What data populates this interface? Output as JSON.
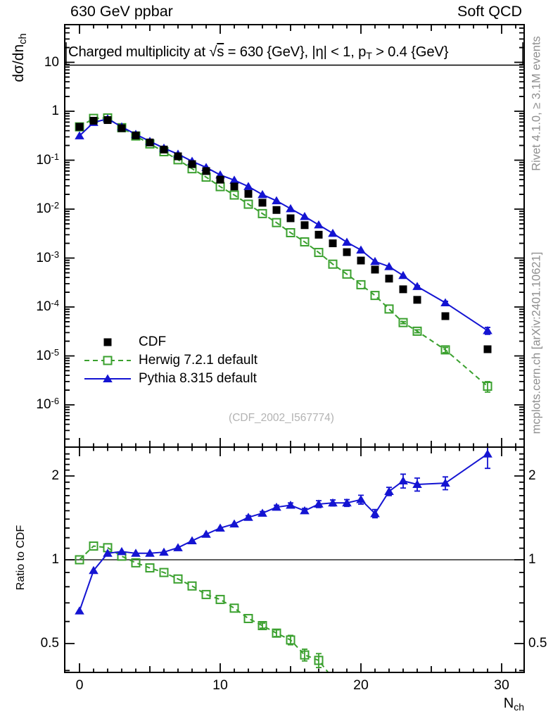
{
  "header": {
    "left_label": "630 GeV ppbar",
    "right_label": "Soft QCD"
  },
  "title": "Charged multiplicity at √s = 630 {GeV}, |η| < 1, p_{T} > 0.4 {GeV}",
  "watermark": "(CDF_2002_I567774)",
  "side_notes": {
    "top": "Rivet 4.1.0, ≥ 3.1M events",
    "bottom": "mcplots.cern.ch [arXiv:2401.10621]"
  },
  "axis_labels": {
    "y_main": "dσ/dn_{ch}",
    "y_ratio": "Ratio to CDF",
    "x": "N_{ch}"
  },
  "colors": {
    "cdf": "#000000",
    "herwig": "#3aa02e",
    "pythia": "#1414d2",
    "gray_text": "#8f8f8f",
    "watermark": "#b3b3b3"
  },
  "legend": [
    {
      "label": "CDF",
      "series": "cdf",
      "marker": "square-filled",
      "line": "none"
    },
    {
      "label": "Herwig 7.2.1 default",
      "series": "herwig",
      "marker": "square-open",
      "line": "dashed"
    },
    {
      "label": "Pythia 8.315 default",
      "series": "pythia",
      "marker": "triangle-filled",
      "line": "solid"
    }
  ],
  "chart_data": [
    {
      "name": "main",
      "type": "line",
      "y_scale": "log",
      "grid": false,
      "xlim": [
        -1.05,
        31.6
      ],
      "ylim": [
        1.4e-07,
        59
      ],
      "x": [
        0,
        1,
        2,
        3,
        4,
        5,
        6,
        7,
        8,
        9,
        10,
        11,
        12,
        13,
        14,
        15,
        16,
        17,
        18,
        19,
        20,
        21,
        22,
        23,
        24,
        26,
        29
      ],
      "x_ticks": {
        "values": [
          0,
          10,
          20,
          30
        ],
        "labels": [
          "0",
          "10",
          "20",
          "30"
        ]
      },
      "y_ticks": [
        {
          "v": 10,
          "t": "10"
        },
        {
          "v": 1,
          "t": "1"
        },
        {
          "v": 0.1,
          "t": "10^{-1}"
        },
        {
          "v": 0.01,
          "t": "10^{-2}"
        },
        {
          "v": 0.001,
          "t": "10^{-3}"
        },
        {
          "v": 0.0001,
          "t": "10^{-4}"
        },
        {
          "v": 1e-05,
          "t": "10^{-5}"
        },
        {
          "v": 1e-06,
          "t": "10^{-6}"
        }
      ],
      "series": [
        {
          "name": "CDF",
          "marker": "square-filled",
          "line": "none",
          "color_key": "cdf",
          "values": [
            0.48,
            0.64,
            0.66,
            0.45,
            0.32,
            0.23,
            0.165,
            0.12,
            0.083,
            0.06,
            0.04,
            0.029,
            0.0205,
            0.0135,
            0.0096,
            0.0065,
            0.0047,
            0.003,
            0.002,
            0.00132,
            0.00089,
            0.00058,
            0.00038,
            0.00023,
            0.00014,
            6.5e-05,
            1.37e-05
          ]
        },
        {
          "name": "Herwig 7.2.1 default",
          "marker": "square-open",
          "line": "dashed",
          "color_key": "herwig",
          "values": [
            0.48,
            0.715,
            0.73,
            0.462,
            0.312,
            0.215,
            0.149,
            0.102,
            0.0668,
            0.045,
            0.0288,
            0.0194,
            0.0126,
            0.0081,
            0.0053,
            0.0033,
            0.00214,
            0.0013,
            0.00075,
            0.00047,
            0.000285,
            0.000172,
            9.1e-05,
            4.8e-05,
            3.2e-05,
            1.33e-05,
            2.4e-06
          ],
          "yerr_frac": [
            0,
            0,
            0,
            0,
            0,
            0,
            0,
            0,
            0,
            0,
            0,
            0,
            0,
            0,
            0,
            0,
            0,
            0,
            0,
            0,
            0,
            0,
            0,
            0.05,
            0.07,
            0.12,
            0.24
          ]
        },
        {
          "name": "Pythia 8.315 default",
          "marker": "triangle-filled",
          "line": "solid",
          "color_key": "pythia",
          "values": [
            0.315,
            0.59,
            0.7,
            0.48,
            0.338,
            0.243,
            0.176,
            0.133,
            0.095,
            0.071,
            0.05,
            0.039,
            0.029,
            0.0198,
            0.0148,
            0.0102,
            0.00705,
            0.00476,
            0.0032,
            0.00211,
            0.00146,
            0.00085,
            0.00067,
            0.00044,
            0.000262,
            0.000122,
            3.29e-05
          ],
          "yerr_frac": [
            0,
            0,
            0,
            0,
            0,
            0,
            0,
            0,
            0,
            0,
            0,
            0,
            0,
            0,
            0,
            0,
            0,
            0,
            0,
            0,
            0,
            0,
            0,
            0,
            0.04,
            0.07,
            0.16
          ]
        }
      ]
    },
    {
      "name": "ratio",
      "type": "line",
      "y_scale": "log",
      "grid": false,
      "ylim": [
        0.392,
        2.47
      ],
      "reference_line": 1,
      "x": [
        0,
        1,
        2,
        3,
        4,
        5,
        6,
        7,
        8,
        9,
        10,
        11,
        12,
        13,
        14,
        15,
        16,
        17,
        18,
        19,
        20,
        21,
        22,
        23,
        24,
        26,
        29
      ],
      "y_ticks": [
        {
          "v": 2,
          "t": "2"
        },
        {
          "v": 1,
          "t": "1"
        },
        {
          "v": 0.5,
          "t": "0.5"
        }
      ],
      "series": [
        {
          "name": "Herwig 7.2.1 default",
          "marker": "square-open",
          "line": "dashed",
          "color_key": "herwig",
          "values": [
            1.0,
            1.12,
            1.105,
            1.03,
            0.975,
            0.935,
            0.9,
            0.853,
            0.805,
            0.75,
            0.72,
            0.67,
            0.615,
            0.58,
            0.545,
            0.515,
            0.455,
            0.435,
            0.375,
            null,
            null,
            null,
            null,
            null,
            null,
            null,
            null
          ],
          "yerr": [
            0,
            0,
            0,
            0,
            0,
            0,
            0,
            0,
            0,
            0,
            0,
            0,
            0,
            0.012,
            0.015,
            0.02,
            0.022,
            0.025,
            0,
            0,
            0,
            0,
            0,
            0,
            0,
            0,
            0
          ]
        },
        {
          "name": "Pythia 8.315 default",
          "marker": "triangle-filled",
          "line": "solid",
          "color_key": "pythia",
          "values": [
            0.655,
            0.915,
            1.055,
            1.07,
            1.055,
            1.055,
            1.065,
            1.105,
            1.17,
            1.235,
            1.3,
            1.345,
            1.42,
            1.47,
            1.545,
            1.57,
            1.5,
            1.585,
            1.6,
            1.6,
            1.645,
            1.465,
            1.76,
            1.92,
            1.865,
            1.885,
            2.4
          ],
          "yerr": [
            0,
            0,
            0,
            0,
            0,
            0,
            0,
            0,
            0,
            0,
            0,
            0,
            0.02,
            0.02,
            0.025,
            0.03,
            0.03,
            0.045,
            0.04,
            0.045,
            0.06,
            0.05,
            0.06,
            0.11,
            0.1,
            0.1,
            0.27
          ]
        }
      ]
    }
  ]
}
